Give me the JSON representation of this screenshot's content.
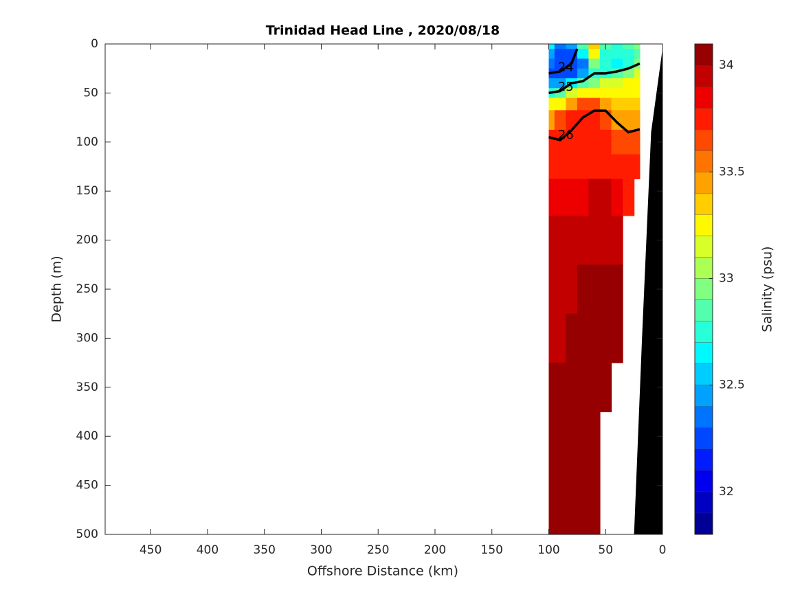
{
  "chart_data": {
    "type": "contour",
    "title": "Trinidad Head Line , 2020/08/18",
    "xlabel": "Offshore Distance (km)",
    "ylabel": "Depth (m)",
    "colorbar_label": "Salinity (psu)",
    "colormap": "jet",
    "color_levels": 23,
    "xlim": [
      490,
      0
    ],
    "xticks": [
      450,
      400,
      350,
      300,
      250,
      200,
      150,
      100,
      50,
      0
    ],
    "ylim": [
      0,
      500
    ],
    "yticks": [
      0,
      50,
      100,
      150,
      200,
      250,
      300,
      350,
      400,
      450,
      500
    ],
    "clim": [
      31.8,
      34.1
    ],
    "cticks": [
      32,
      32.5,
      33,
      33.5,
      34
    ],
    "x": [
      100,
      90,
      80,
      70,
      60,
      50,
      40,
      30,
      20
    ],
    "depth": [
      0,
      10,
      20,
      30,
      40,
      50,
      60,
      75,
      100,
      125,
      150,
      200,
      250,
      300,
      350,
      400,
      450,
      500
    ],
    "salinity": [
      [
        32.6,
        32.4,
        32.5,
        32.9,
        33.4,
        32.9,
        32.8,
        32.9,
        33.0
      ],
      [
        32.5,
        32.3,
        32.3,
        32.6,
        33.2,
        32.8,
        32.7,
        32.8,
        32.9
      ],
      [
        32.4,
        32.2,
        32.2,
        32.4,
        33.0,
        32.7,
        32.6,
        32.8,
        33.0
      ],
      [
        32.3,
        32.2,
        32.3,
        32.5,
        32.8,
        32.8,
        32.9,
        33.0,
        33.1
      ],
      [
        32.5,
        32.5,
        32.6,
        32.9,
        33.0,
        33.1,
        33.1,
        33.2,
        33.2
      ],
      [
        32.8,
        32.9,
        33.1,
        33.3,
        33.3,
        33.3,
        33.3,
        33.3,
        33.3
      ],
      [
        33.2,
        33.3,
        33.5,
        33.6,
        33.6,
        33.5,
        33.4,
        33.4,
        33.4
      ],
      [
        33.5,
        33.6,
        33.7,
        33.8,
        33.7,
        33.6,
        33.5,
        33.5,
        33.5
      ],
      [
        33.7,
        33.7,
        33.8,
        33.8,
        33.8,
        33.7,
        33.6,
        33.6,
        33.6
      ],
      [
        33.8,
        33.8,
        33.8,
        33.8,
        33.8,
        33.8,
        33.7,
        33.7,
        33.7
      ],
      [
        33.9,
        33.9,
        33.9,
        33.9,
        34.0,
        34.0,
        33.9,
        33.8,
        null
      ],
      [
        34.0,
        34.0,
        34.0,
        34.0,
        34.0,
        34.0,
        34.0,
        null,
        null
      ],
      [
        34.0,
        34.0,
        34.0,
        34.05,
        34.05,
        34.05,
        34.05,
        null,
        null
      ],
      [
        34.0,
        34.0,
        34.05,
        34.05,
        34.05,
        34.05,
        34.05,
        null,
        null
      ],
      [
        34.05,
        34.05,
        34.05,
        34.05,
        34.05,
        34.05,
        null,
        null,
        null
      ],
      [
        34.05,
        34.05,
        34.05,
        34.05,
        34.05,
        null,
        null,
        null,
        null
      ],
      [
        34.05,
        34.05,
        34.05,
        34.05,
        34.05,
        null,
        null,
        null,
        null
      ],
      [
        34.05,
        34.05,
        34.05,
        34.05,
        34.05,
        null,
        null,
        null,
        null
      ]
    ],
    "contours": [
      {
        "level": 24,
        "x": [
          100,
          90,
          80,
          75
        ],
        "depth": [
          30,
          28,
          20,
          5
        ]
      },
      {
        "level": 25,
        "x": [
          100,
          90,
          80,
          70,
          60,
          50,
          40,
          30,
          20
        ],
        "depth": [
          50,
          48,
          40,
          38,
          30,
          30,
          28,
          25,
          20
        ]
      },
      {
        "level": 26,
        "x": [
          100,
          90,
          80,
          70,
          60,
          50,
          40,
          30,
          20
        ],
        "depth": [
          95,
          98,
          88,
          75,
          68,
          68,
          80,
          90,
          87
        ]
      }
    ],
    "bathymetry": {
      "x": [
        0,
        10,
        18,
        25
      ],
      "depth": [
        5,
        90,
        300,
        500
      ]
    }
  }
}
